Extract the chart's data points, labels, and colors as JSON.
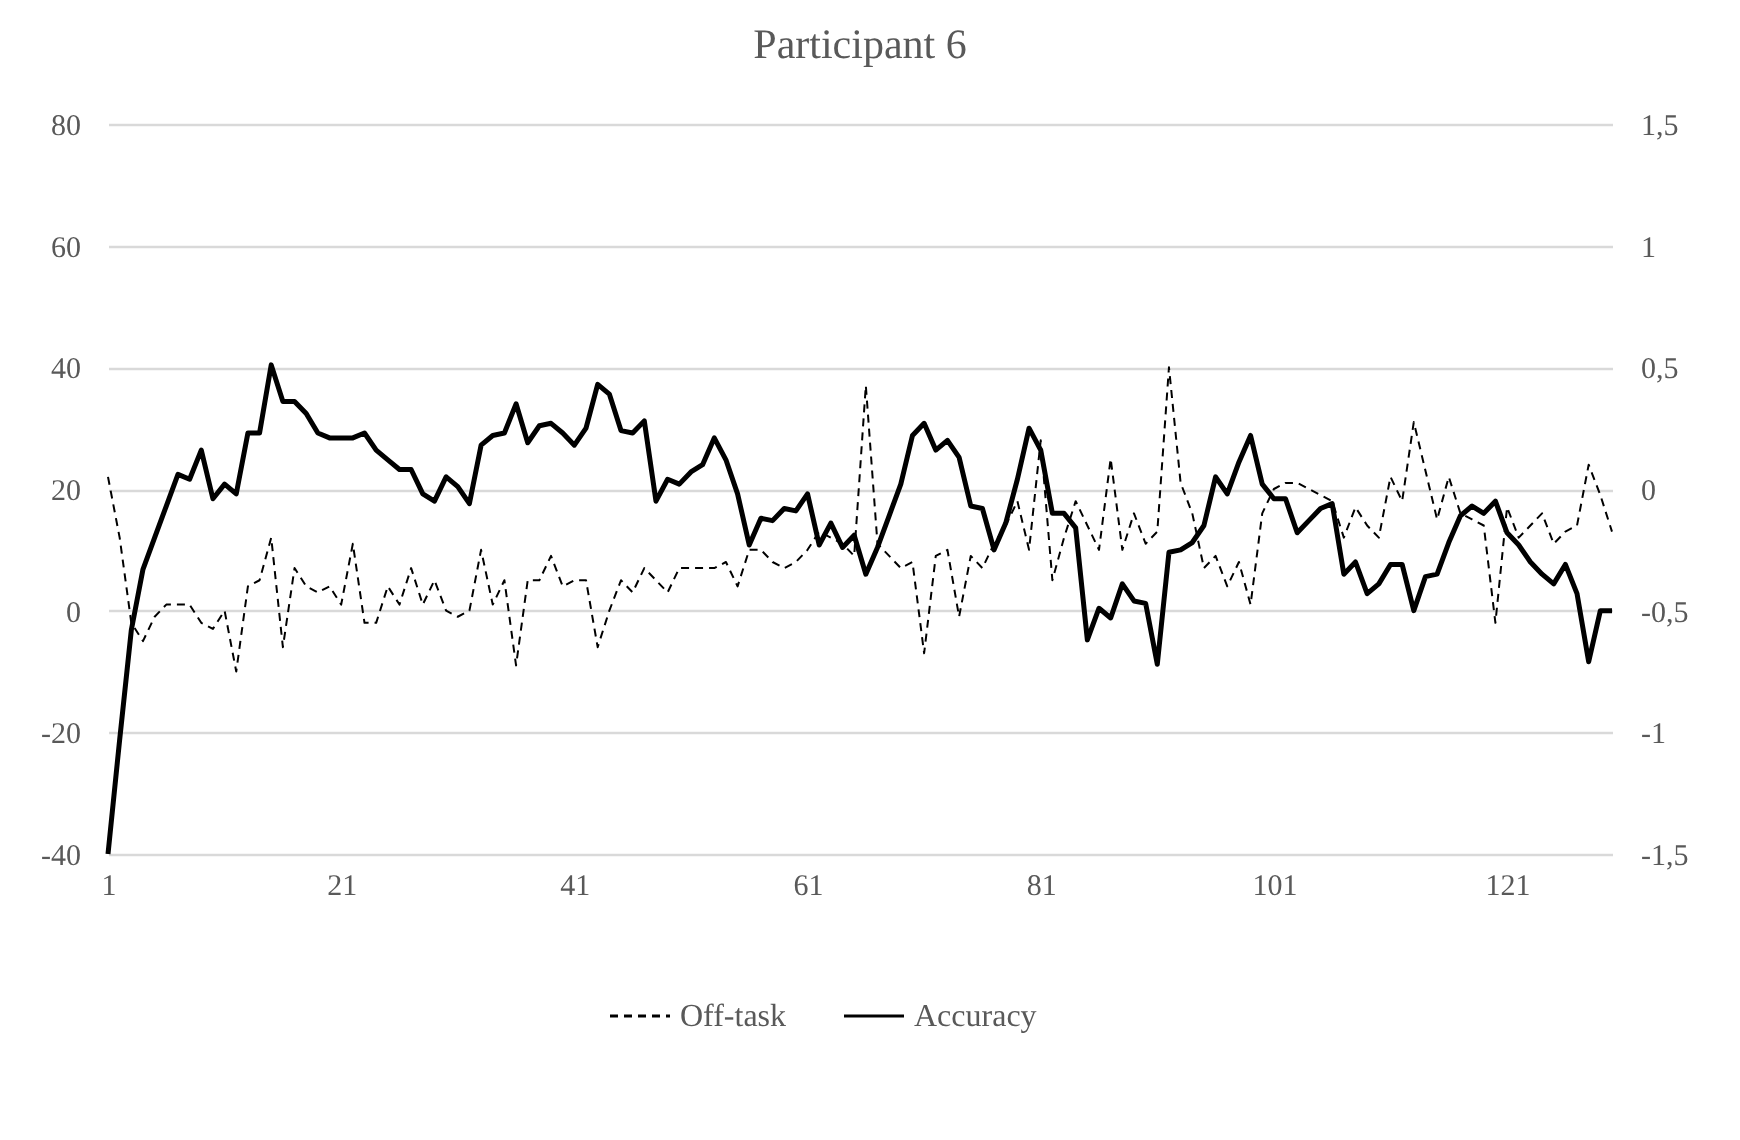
{
  "chart_data": {
    "type": "line",
    "title": "Participant 6",
    "x": [
      1,
      2,
      3,
      4,
      5,
      6,
      7,
      8,
      9,
      10,
      11,
      12,
      13,
      14,
      15,
      16,
      17,
      18,
      19,
      20,
      21,
      22,
      23,
      24,
      25,
      26,
      27,
      28,
      29,
      30,
      31,
      32,
      33,
      34,
      35,
      36,
      37,
      38,
      39,
      40,
      41,
      42,
      43,
      44,
      45,
      46,
      47,
      48,
      49,
      50,
      51,
      52,
      53,
      54,
      55,
      56,
      57,
      58,
      59,
      60,
      61,
      62,
      63,
      64,
      65,
      66,
      67,
      68,
      69,
      70,
      71,
      72,
      73,
      74,
      75,
      76,
      77,
      78,
      79,
      80,
      81,
      82,
      83,
      84,
      85,
      86,
      87,
      88,
      89,
      90,
      91,
      92,
      93,
      94,
      95,
      96,
      97,
      98,
      99,
      100,
      101,
      102,
      103,
      104,
      105,
      106,
      107,
      108,
      109,
      110,
      111,
      112,
      113,
      114,
      115,
      116,
      117,
      118,
      119,
      120,
      121,
      122,
      123,
      124,
      125,
      126,
      127,
      128,
      129,
      130
    ],
    "series": [
      {
        "name": "Off-task",
        "color": "#000000",
        "line_style": "dashed",
        "values": [
          22,
          12,
          -2,
          -5,
          -1,
          1,
          1,
          1,
          -2,
          -3,
          0,
          -10,
          4,
          5,
          12,
          -6,
          7,
          4,
          3,
          4,
          1,
          11,
          -2,
          -2,
          4,
          1,
          7,
          1,
          5,
          0,
          -1,
          0,
          10,
          1,
          5,
          -9,
          5,
          5,
          9,
          4,
          5,
          5,
          -6,
          0,
          5,
          3,
          7,
          5,
          3,
          7,
          7,
          7,
          7,
          8,
          4,
          10,
          10,
          8,
          7,
          8,
          10,
          13,
          12,
          11,
          9,
          37,
          11,
          9,
          7,
          8,
          -7,
          9,
          10,
          -1,
          9,
          7,
          11,
          14,
          18,
          10,
          28,
          5,
          12,
          18,
          14,
          10,
          25,
          10,
          16,
          11,
          13,
          40,
          21,
          16,
          7,
          9,
          4,
          8,
          1,
          16,
          20,
          21,
          21,
          20,
          19,
          18,
          12,
          17,
          14,
          12,
          22,
          18,
          31,
          23,
          15,
          22,
          16,
          15,
          14,
          -2,
          17,
          12,
          14,
          16,
          11,
          13,
          14,
          24,
          19,
          13
        ]
      },
      {
        "name": "Accuracy",
        "color": "#000000",
        "line_style": "solid",
        "axis": "y2",
        "values": [
          -1.5,
          -1.03,
          -0.58,
          -0.33,
          -0.2,
          -0.07,
          0.06,
          0.04,
          0.16,
          -0.04,
          0.02,
          -0.02,
          0.23,
          0.23,
          0.51,
          0.36,
          0.36,
          0.31,
          0.23,
          0.21,
          0.21,
          0.21,
          0.23,
          0.16,
          0.12,
          0.08,
          0.08,
          -0.02,
          -0.05,
          0.05,
          0.01,
          -0.06,
          0.18,
          0.22,
          0.23,
          0.35,
          0.19,
          0.26,
          0.27,
          0.23,
          0.18,
          0.25,
          0.43,
          0.39,
          0.24,
          0.23,
          0.28,
          -0.05,
          0.04,
          0.02,
          0.07,
          0.1,
          0.21,
          0.12,
          -0.02,
          -0.23,
          -0.12,
          -0.13,
          -0.08,
          -0.09,
          -0.02,
          -0.23,
          -0.14,
          -0.24,
          -0.19,
          -0.35,
          -0.24,
          -0.11,
          0.02,
          0.22,
          0.27,
          0.16,
          0.2,
          0.13,
          -0.07,
          -0.08,
          -0.25,
          -0.14,
          0.04,
          0.25,
          0.16,
          -0.1,
          -0.1,
          -0.16,
          -0.62,
          -0.49,
          -0.53,
          -0.39,
          -0.46,
          -0.47,
          -0.72,
          -0.26,
          -0.25,
          -0.22,
          -0.15,
          0.05,
          -0.02,
          0.11,
          0.22,
          0.02,
          -0.04,
          -0.04,
          -0.18,
          -0.13,
          -0.08,
          -0.06,
          -0.35,
          -0.3,
          -0.43,
          -0.39,
          -0.31,
          -0.31,
          -0.5,
          -0.36,
          -0.35,
          -0.22,
          -0.11,
          -0.07,
          -0.1,
          -0.05,
          -0.18,
          -0.23,
          -0.3,
          -0.35,
          -0.39,
          -0.31,
          -0.43,
          -0.71,
          -0.5,
          -0.5
        ]
      }
    ],
    "xlim": [
      1,
      130
    ],
    "xticks": [
      1,
      21,
      41,
      61,
      81,
      101,
      121
    ],
    "ylim": [
      -40,
      80
    ],
    "yticks": [
      -40,
      -20,
      0,
      20,
      40,
      60,
      80
    ],
    "y2lim": [
      -1.5,
      1.5
    ],
    "y2ticks": [
      {
        "value": -1.5,
        "label": "-1,5"
      },
      -1,
      {
        "value": -0.5,
        "label": "-0,5"
      },
      0,
      {
        "value": 0.5,
        "label": "0,5"
      },
      1,
      {
        "value": 1.5,
        "label": "1,5"
      }
    ],
    "grid": "y",
    "legend": "bottom",
    "marker": "none"
  }
}
